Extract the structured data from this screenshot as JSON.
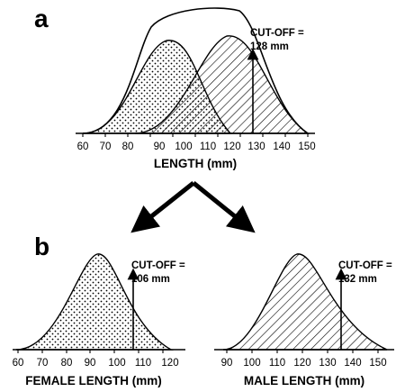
{
  "panel_a": {
    "letter": "a",
    "cutoff_line1": "CUT-OFF =",
    "cutoff_line2": "128 mm",
    "ticks": [
      "60",
      "70",
      "80",
      "90",
      "100",
      "110",
      "120",
      "130",
      "140",
      "150"
    ],
    "axis_title": "LENGTH (mm)"
  },
  "panel_b": {
    "letter": "b",
    "female": {
      "cutoff_line1": "CUT-OFF =",
      "cutoff_line2": "106 mm",
      "ticks": [
        "60",
        "70",
        "80",
        "90",
        "100",
        "110",
        "120"
      ],
      "axis_title": "FEMALE LENGTH (mm)"
    },
    "male": {
      "cutoff_line1": "CUT-OFF =",
      "cutoff_line2": "132 mm",
      "ticks": [
        "90",
        "100",
        "110",
        "120",
        "130",
        "140",
        "150"
      ],
      "axis_title": "MALE LENGTH (mm)"
    }
  },
  "patterns": {
    "female": "dots",
    "male": "diagonal-hatch"
  }
}
